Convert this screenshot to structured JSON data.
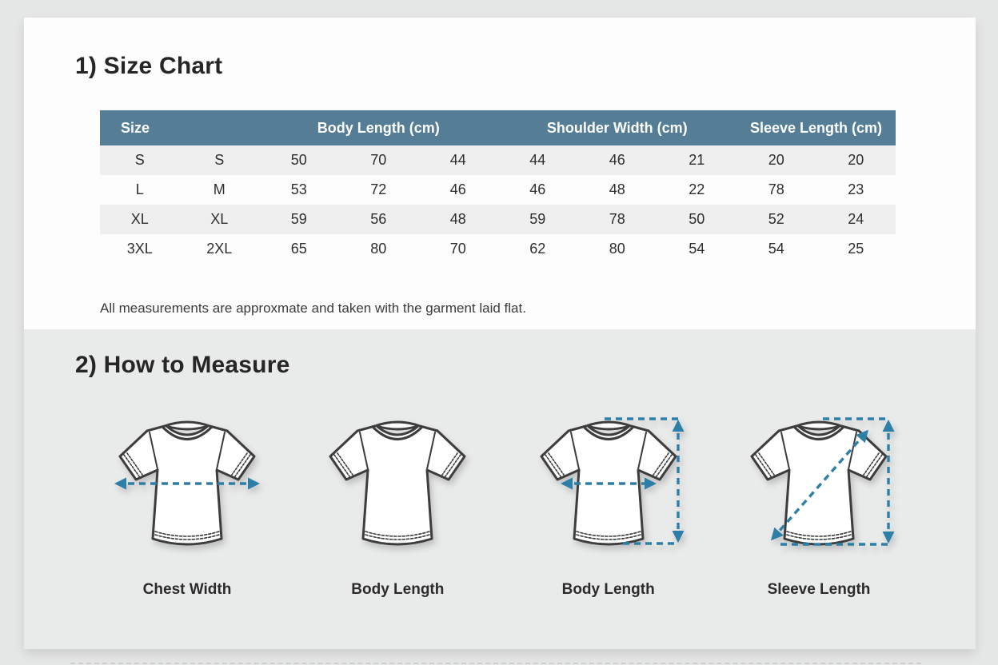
{
  "sections": {
    "size_chart_title": "1) Size Chart",
    "how_to_measure_title": "2) How to Measure",
    "note": "All measurements are approxmate and taken with the garment laid flat."
  },
  "table": {
    "headers": [
      {
        "label": "Size",
        "colspan": 2,
        "align": "left"
      },
      {
        "label": "Body Length (cm)",
        "colspan": 3,
        "align": "center"
      },
      {
        "label": "Shoulder Width (cm)",
        "colspan": 3,
        "align": "center"
      },
      {
        "label": "Sleeve Length (cm)",
        "colspan": 2,
        "align": "center"
      }
    ],
    "rows": [
      [
        "S",
        "S",
        "50",
        "70",
        "44",
        "44",
        "46",
        "21",
        "20",
        "20"
      ],
      [
        "L",
        "M",
        "53",
        "72",
        "46",
        "46",
        "48",
        "22",
        "78",
        "23"
      ],
      [
        "XL",
        "XL",
        "59",
        "56",
        "48",
        "59",
        "78",
        "50",
        "52",
        "24"
      ],
      [
        "3XL",
        "2XL",
        "65",
        "80",
        "70",
        "62",
        "80",
        "54",
        "54",
        "25"
      ]
    ]
  },
  "diagrams": [
    {
      "label": "Chest Width",
      "arrow": "chest"
    },
    {
      "label": "Body Length",
      "arrow": "none"
    },
    {
      "label": "Body Length",
      "arrow": "chest-vertical"
    },
    {
      "label": "Sleeve Length",
      "arrow": "diagonal-vertical"
    }
  ],
  "colors": {
    "table_header_bg": "#557e96",
    "table_header_text": "#ffffff",
    "row_stripe": "#efefef",
    "arrow_blue": "#2e7fa7",
    "section2_bg": "#e9eaea"
  }
}
